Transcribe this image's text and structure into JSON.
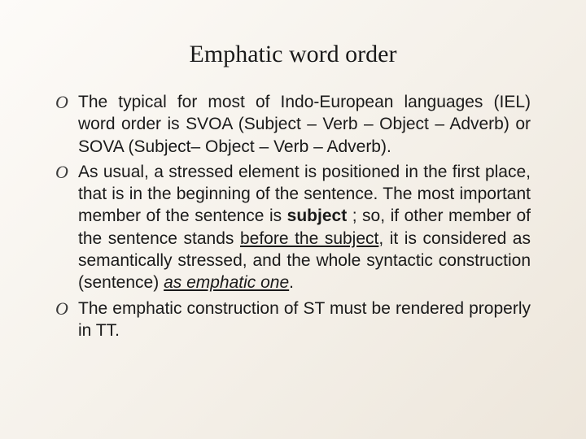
{
  "slide": {
    "title": "Emphatic word order",
    "bullet_marker": "O",
    "items": [
      {
        "segments": [
          {
            "text": "The typical for most of Indo-European languages (IEL) word order is SVOA (Subject – Verb – Object – Adverb) or SOVA (Subject– Object – Verb – Adverb).",
            "style": ""
          }
        ]
      },
      {
        "segments": [
          {
            "text": "As usual, a stressed element is positioned in the first place, that is in the beginning of the sentence. The most important member of the sentence is ",
            "style": ""
          },
          {
            "text": "subject",
            "style": "bold"
          },
          {
            "text": " ; so, if other member of the sentence stands ",
            "style": ""
          },
          {
            "text": "before the subject",
            "style": "underline"
          },
          {
            "text": ", it is considered as semantically stressed, and the whole syntactic construction (sentence) ",
            "style": ""
          },
          {
            "text": "as emphatic one",
            "style": "underline italic"
          },
          {
            "text": ".",
            "style": ""
          }
        ]
      },
      {
        "segments": [
          {
            "text": "The emphatic construction of ST must be rendered properly in TT.",
            "style": ""
          }
        ]
      }
    ]
  },
  "styling": {
    "background_gradient_start": "#fdfbf8",
    "background_gradient_mid": "#f5f1ea",
    "background_gradient_end": "#ede6db",
    "title_font": "Georgia",
    "title_fontsize": 30,
    "body_font": "Arial",
    "body_fontsize": 21,
    "body_line_height": 1.3,
    "text_color": "#1a1a1a",
    "bullet_color": "#3a3a3a",
    "text_align": "justify",
    "slide_width": 720,
    "slide_height": 540
  }
}
